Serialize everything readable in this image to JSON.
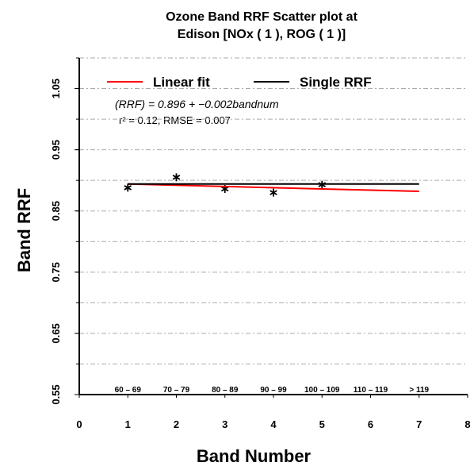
{
  "chart_data": {
    "type": "scatter",
    "title": [
      "Ozone Band RRF Scatter plot at",
      "Edison  [NOx ( 1 ), ROG ( 1 )]"
    ],
    "x_label": "Band Number",
    "y_label": "Band RRF",
    "xlim": [
      0,
      8
    ],
    "xticks": [
      0,
      1,
      2,
      3,
      4,
      5,
      6,
      7,
      8
    ],
    "ylim": [
      0.55,
      1.1
    ],
    "yticks": [
      0.55,
      0.65,
      0.75,
      0.85,
      0.95,
      1.05
    ],
    "y_grid_ticks": [
      0.6,
      0.65,
      0.7,
      0.75,
      0.8,
      0.85,
      0.9,
      0.95,
      1.0,
      1.05,
      1.1
    ],
    "grid": true,
    "categories": {
      "x": [
        1,
        2,
        3,
        4,
        5,
        6,
        7
      ],
      "labels": [
        "60 – 69",
        "70 – 79",
        "80 – 89",
        "90 – 99",
        "100 – 109",
        "110 – 119",
        "> 119"
      ]
    },
    "series": [
      {
        "name": "Band RRF",
        "kind": "points",
        "color": "#000000",
        "x": [
          1,
          2,
          3,
          4,
          5
        ],
        "values": [
          0.888,
          0.905,
          0.886,
          0.88,
          0.893
        ]
      },
      {
        "name": "Linear fit",
        "kind": "line",
        "color": "#ff0000",
        "x": [
          1,
          7
        ],
        "values": [
          0.894,
          0.882
        ]
      },
      {
        "name": "Single RRF",
        "kind": "line",
        "color": "#000000",
        "x": [
          1,
          7
        ],
        "values": [
          0.894,
          0.894
        ]
      }
    ],
    "legend": [
      "Linear fit",
      "Single RRF"
    ],
    "annotations": [
      "(RRF) = 0.896 + −0.002bandnum",
      "r² = 0.12,  RMSE = 0.007"
    ]
  }
}
